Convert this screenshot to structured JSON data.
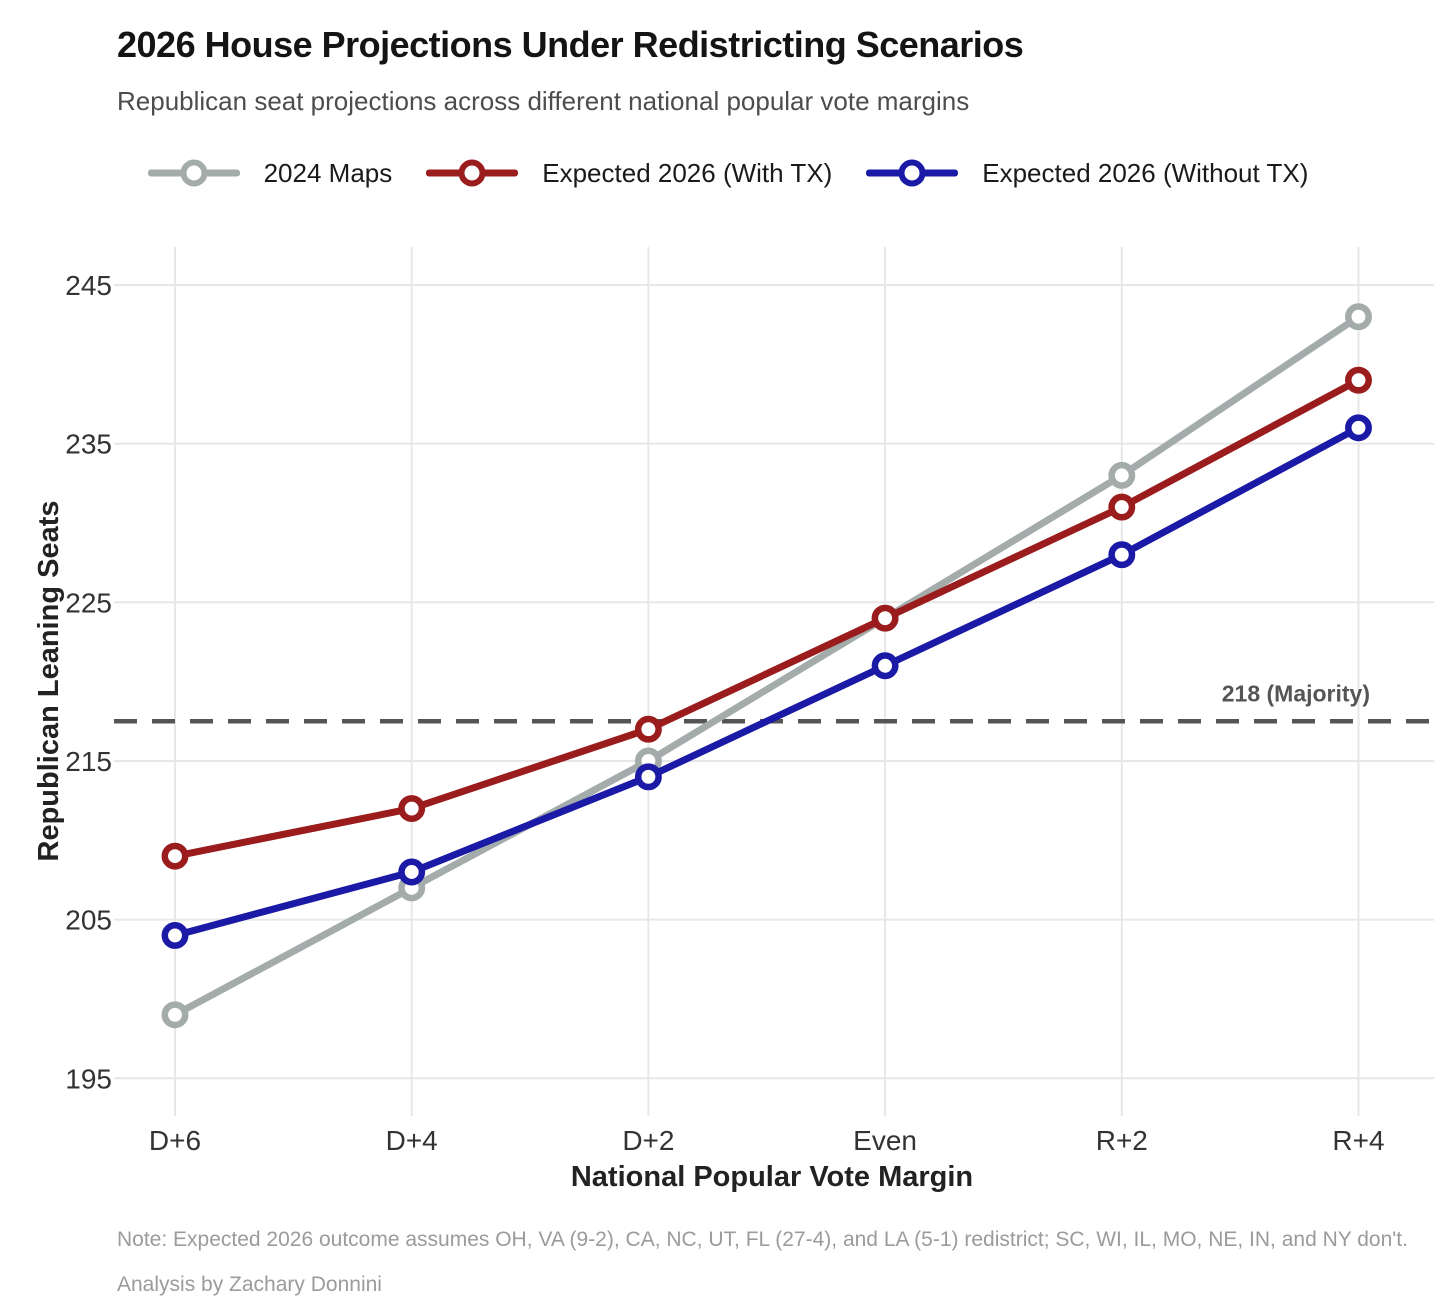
{
  "header": {
    "title": "2026 House Projections Under Redistricting Scenarios",
    "subtitle": "Republican seat projections across different national popular vote margins"
  },
  "chart_data": {
    "type": "line",
    "categories": [
      "D+6",
      "D+4",
      "D+2",
      "Even",
      "R+2",
      "R+4"
    ],
    "series": [
      {
        "name": "2024 Maps",
        "color": "#a3acab",
        "values": [
          199,
          207,
          215,
          224,
          233,
          243
        ]
      },
      {
        "name": "Expected 2026 (With TX)",
        "color": "#9a1c1c",
        "values": [
          209,
          212,
          217,
          224,
          231,
          239
        ]
      },
      {
        "name": "Expected 2026 (Without TX)",
        "color": "#1a1aa6",
        "values": [
          204,
          208,
          214,
          221,
          228,
          236
        ]
      }
    ],
    "xlabel": "National Popular Vote Margin",
    "ylabel": "Republican Leaning Seats",
    "y_ticks": [
      195,
      205,
      215,
      225,
      235,
      245
    ],
    "ylim": [
      193,
      247
    ],
    "grid": true,
    "legend_position": "top",
    "marker": "open-circle",
    "reference_line": {
      "value": 217.5,
      "label": "218 (Majority)",
      "color": "#555555",
      "style": "dashed"
    }
  },
  "footer": {
    "note_line1": "Note: Expected 2026 outcome assumes OH, VA (9-2), CA, NC, UT, FL (27-4), and LA (5-1) redistrict; SC, WI, IL, MO, NE, IN, and NY don't.",
    "note_line2": "Analysis by Zachary Donnini"
  }
}
